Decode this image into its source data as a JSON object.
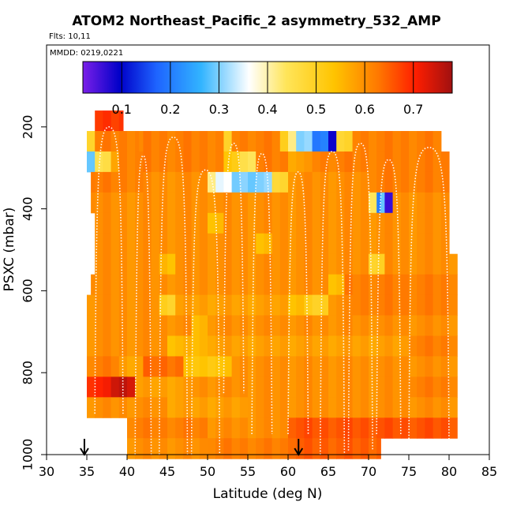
{
  "header": {
    "title": "ATOM2 Northeast_Pacific_2 asymmetry_532_AMP",
    "flights": "Flts: 10,11",
    "dates": "MMDD: 0219,0221"
  },
  "chart_data": {
    "type": "heatmap",
    "title": "ATOM2 Northeast_Pacific_2 asymmetry_532_AMP",
    "xlabel": "Latitude (deg N)",
    "ylabel": "PSXC (mbar)",
    "xlim": [
      30,
      85
    ],
    "ylim": [
      1000,
      0
    ],
    "xticks": [
      "30",
      "35",
      "40",
      "45",
      "50",
      "55",
      "60",
      "65",
      "70",
      "75",
      "80",
      "85"
    ],
    "yticks": [
      "200",
      "400",
      "600",
      "800",
      "1000"
    ],
    "colorbar": {
      "range": [
        0.02,
        0.78
      ],
      "ticks": [
        "0.1",
        "0.2",
        "0.3",
        "0.4",
        "0.5",
        "0.6",
        "0.7"
      ],
      "colors": [
        "#7a1fe8",
        "#0000c8",
        "#1e64ff",
        "#32b4ff",
        "#ffffff",
        "#ffe55a",
        "#ffc400",
        "#ff7800",
        "#ff1e00",
        "#a01010"
      ]
    },
    "rows": [
      {
        "p": 185,
        "segments": [
          [
            36,
            39.5,
            0.68
          ]
        ]
      },
      {
        "p": 235,
        "segments": [
          [
            35,
            36,
            0.5
          ],
          [
            36,
            41.5,
            0.62
          ],
          [
            41.5,
            52,
            0.62
          ],
          [
            52,
            53,
            0.48
          ],
          [
            53,
            59,
            0.62
          ],
          [
            59,
            60,
            0.5
          ],
          [
            60,
            61,
            0.43
          ],
          [
            61,
            63,
            0.3
          ],
          [
            63,
            65,
            0.2
          ],
          [
            65,
            66,
            0.1
          ],
          [
            66,
            68,
            0.48
          ],
          [
            68,
            79,
            0.62
          ]
        ]
      },
      {
        "p": 285,
        "segments": [
          [
            35,
            36,
            0.3
          ],
          [
            36,
            38,
            0.45
          ],
          [
            38,
            39,
            0.58
          ],
          [
            39,
            43,
            0.62
          ],
          [
            43,
            52,
            0.62
          ],
          [
            52,
            54,
            0.52
          ],
          [
            54,
            56,
            0.45
          ],
          [
            56,
            60,
            0.62
          ],
          [
            60,
            63,
            0.58
          ],
          [
            63,
            80,
            0.62
          ]
        ]
      },
      {
        "p": 335,
        "segments": [
          [
            35.5,
            42,
            0.62
          ],
          [
            42,
            50,
            0.6
          ],
          [
            50,
            51,
            0.43
          ],
          [
            51,
            53,
            0.35
          ],
          [
            53,
            58,
            0.3
          ],
          [
            58,
            60,
            0.48
          ],
          [
            60,
            70,
            0.6
          ],
          [
            70,
            80,
            0.62
          ]
        ]
      },
      {
        "p": 385,
        "segments": [
          [
            35.5,
            70,
            0.6
          ],
          [
            70,
            71,
            0.45
          ],
          [
            71,
            71.5,
            0.2
          ],
          [
            71.5,
            72,
            0.3
          ],
          [
            72,
            73,
            0.05
          ],
          [
            73,
            80,
            0.6
          ]
        ]
      },
      {
        "p": 435,
        "segments": [
          [
            36,
            50,
            0.6
          ],
          [
            50,
            52,
            0.55
          ],
          [
            52,
            80,
            0.6
          ]
        ]
      },
      {
        "p": 485,
        "segments": [
          [
            36,
            56,
            0.6
          ],
          [
            56,
            58,
            0.54
          ],
          [
            58,
            80,
            0.6
          ]
        ]
      },
      {
        "p": 535,
        "segments": [
          [
            36,
            44,
            0.6
          ],
          [
            44,
            46,
            0.55
          ],
          [
            46,
            70,
            0.6
          ],
          [
            70,
            72,
            0.5
          ],
          [
            72,
            81,
            0.6
          ]
        ]
      },
      {
        "p": 585,
        "segments": [
          [
            35.5,
            65,
            0.6
          ],
          [
            65,
            67,
            0.55
          ],
          [
            67,
            81,
            0.62
          ]
        ]
      },
      {
        "p": 635,
        "segments": [
          [
            35,
            44,
            0.6
          ],
          [
            44,
            46,
            0.5
          ],
          [
            46,
            60,
            0.58
          ],
          [
            60,
            62,
            0.55
          ],
          [
            62,
            65,
            0.5
          ],
          [
            65,
            68,
            0.6
          ],
          [
            68,
            81,
            0.62
          ]
        ]
      },
      {
        "p": 685,
        "segments": [
          [
            35,
            48,
            0.6
          ],
          [
            48,
            50,
            0.55
          ],
          [
            50,
            81,
            0.6
          ]
        ]
      },
      {
        "p": 735,
        "segments": [
          [
            35,
            45,
            0.6
          ],
          [
            45,
            50,
            0.55
          ],
          [
            50,
            75,
            0.58
          ],
          [
            75,
            81,
            0.62
          ]
        ]
      },
      {
        "p": 785,
        "segments": [
          [
            35,
            39,
            0.62
          ],
          [
            39,
            42,
            0.58
          ],
          [
            42,
            47,
            0.64
          ],
          [
            47,
            53,
            0.53
          ],
          [
            53,
            81,
            0.6
          ]
        ]
      },
      {
        "p": 835,
        "segments": [
          [
            35,
            38,
            0.7
          ],
          [
            38,
            41,
            0.75
          ],
          [
            41,
            48,
            0.58
          ],
          [
            48,
            75,
            0.6
          ],
          [
            75,
            81,
            0.62
          ]
        ]
      },
      {
        "p": 885,
        "segments": [
          [
            35,
            45,
            0.6
          ],
          [
            45,
            55,
            0.58
          ],
          [
            55,
            81,
            0.6
          ]
        ]
      },
      {
        "p": 935,
        "segments": [
          [
            40,
            50,
            0.62
          ],
          [
            50,
            60,
            0.6
          ],
          [
            60,
            81,
            0.66
          ]
        ]
      },
      {
        "p": 985,
        "segments": [
          [
            40,
            50,
            0.6
          ],
          [
            50,
            60,
            0.62
          ],
          [
            60,
            71.5,
            0.65
          ]
        ]
      }
    ],
    "arrows": [
      34.7,
      61.3
    ],
    "profiles": [
      {
        "x1": 36,
        "x2": 39.5,
        "p_top": 200,
        "p_bot": 900
      },
      {
        "x1": 41,
        "x2": 43,
        "p_top": 270,
        "p_bot": 1000
      },
      {
        "x1": 44,
        "x2": 47.5,
        "p_top": 225,
        "p_bot": 1000
      },
      {
        "x1": 48,
        "x2": 51.5,
        "p_top": 305,
        "p_bot": 1000
      },
      {
        "x1": 52,
        "x2": 54.5,
        "p_top": 240,
        "p_bot": 850
      },
      {
        "x1": 55.5,
        "x2": 58,
        "p_top": 265,
        "p_bot": 950
      },
      {
        "x1": 60,
        "x2": 62.5,
        "p_top": 310,
        "p_bot": 950
      },
      {
        "x1": 64,
        "x2": 67,
        "p_top": 260,
        "p_bot": 1000
      },
      {
        "x1": 67.5,
        "x2": 70.5,
        "p_top": 240,
        "p_bot": 990
      },
      {
        "x1": 71,
        "x2": 74,
        "p_top": 280,
        "p_bot": 950
      },
      {
        "x1": 75,
        "x2": 80,
        "p_top": 250,
        "p_bot": 990
      }
    ]
  }
}
